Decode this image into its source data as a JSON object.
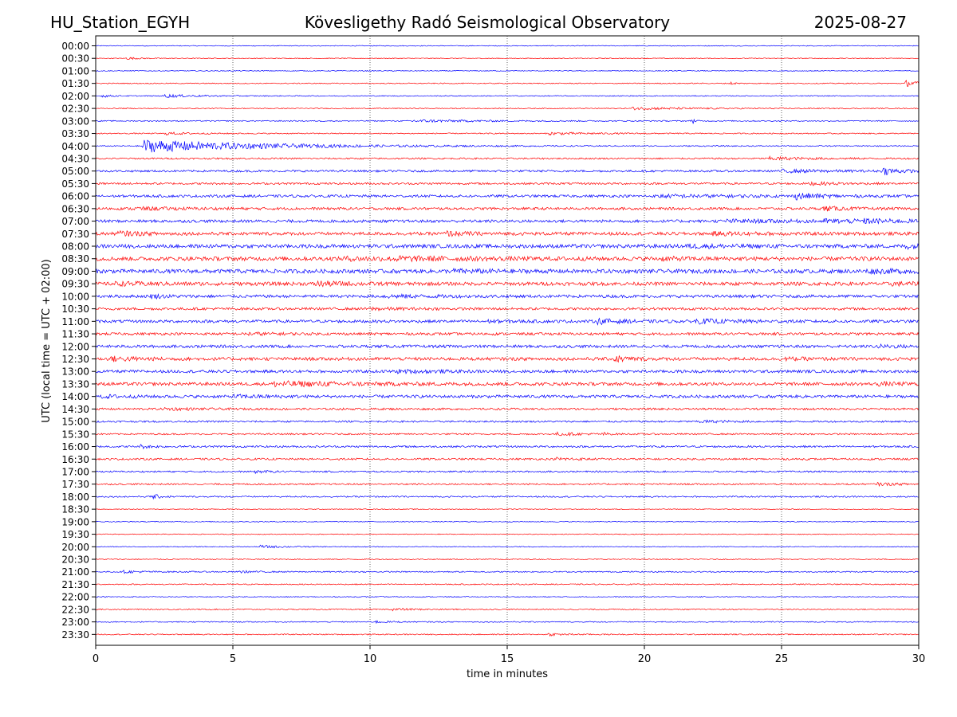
{
  "header": {
    "left": "HU_Station_EGYH",
    "center": "Kövesligethy Radó Seismological Observatory",
    "right": "2025-08-27"
  },
  "colors": {
    "even_rows": "#0000ff",
    "odd_rows": "#ff0000",
    "grid": "#000000",
    "axes": "#000000"
  },
  "chart_data": {
    "type": "line",
    "title": "Kövesligethy Radó Seismological Observatory",
    "xlabel": "time in minutes",
    "ylabel": "UTC (local time = UTC + 02:00)",
    "xlim": [
      0,
      30
    ],
    "x_ticks": [
      0,
      5,
      10,
      15,
      20,
      25,
      30
    ],
    "vertical_grid": "dotted at each x tick",
    "rows": [
      {
        "label": "00:00",
        "color": "blue",
        "noise": 0.5,
        "events": []
      },
      {
        "label": "00:30",
        "color": "red",
        "noise": 0.5,
        "events": [
          [
            1.1,
            1.6,
            0.4
          ]
        ]
      },
      {
        "label": "01:00",
        "color": "blue",
        "noise": 0.5,
        "events": []
      },
      {
        "label": "01:30",
        "color": "red",
        "noise": 0.6,
        "events": [
          [
            23.1,
            2,
            0.2
          ],
          [
            29.5,
            4,
            0.5
          ]
        ]
      },
      {
        "label": "02:00",
        "color": "blue",
        "noise": 0.6,
        "events": [
          [
            0.2,
            2,
            0.3
          ],
          [
            2.5,
            2,
            1.0
          ]
        ]
      },
      {
        "label": "02:30",
        "color": "red",
        "noise": 0.6,
        "events": [
          [
            19.5,
            1.5,
            2.5
          ]
        ]
      },
      {
        "label": "03:00",
        "color": "blue",
        "noise": 0.7,
        "events": [
          [
            11.5,
            1.5,
            2.5
          ],
          [
            21.7,
            6,
            0.1
          ]
        ]
      },
      {
        "label": "03:30",
        "color": "red",
        "noise": 0.7,
        "events": [
          [
            2.5,
            1.5,
            1.0
          ],
          [
            16.5,
            1.5,
            1.5
          ]
        ]
      },
      {
        "label": "04:00",
        "color": "blue",
        "noise": 0.7,
        "events": [
          [
            1.7,
            8,
            4.0
          ]
        ]
      },
      {
        "label": "04:30",
        "color": "red",
        "noise": 1.0,
        "events": [
          [
            24.5,
            1.8,
            1.5
          ]
        ]
      },
      {
        "label": "05:00",
        "color": "blue",
        "noise": 1.3,
        "events": [
          [
            28.7,
            4,
            0.6
          ],
          [
            25,
            1.5,
            2.0
          ]
        ]
      },
      {
        "label": "05:30",
        "color": "red",
        "noise": 1.3,
        "events": [
          [
            26,
            1.5,
            1.0
          ]
        ]
      },
      {
        "label": "06:00",
        "color": "blue",
        "noise": 1.6,
        "events": [
          [
            25.5,
            3.5,
            0.8
          ],
          [
            20.5,
            1.3,
            3.0
          ]
        ]
      },
      {
        "label": "06:30",
        "color": "red",
        "noise": 1.6,
        "events": [
          [
            26.5,
            2.5,
            0.8
          ],
          [
            1.3,
            1.3,
            2.0
          ]
        ]
      },
      {
        "label": "07:00",
        "color": "blue",
        "noise": 1.8,
        "events": [
          [
            23,
            1.3,
            3.0
          ],
          [
            26.5,
            1.5,
            2.0
          ],
          [
            28,
            1.3,
            1.5
          ]
        ]
      },
      {
        "label": "07:30",
        "color": "red",
        "noise": 2.0,
        "events": [
          [
            0.8,
            2.5,
            0.8
          ],
          [
            12.7,
            2.5,
            0.8
          ],
          [
            22.5,
            1.3,
            2.0
          ]
        ]
      },
      {
        "label": "08:00",
        "color": "blue",
        "noise": 2.3,
        "events": [
          [
            29.5,
            2.3,
            0.5
          ],
          [
            21.5,
            1.3,
            2.0
          ]
        ]
      },
      {
        "label": "08:30",
        "color": "red",
        "noise": 2.5,
        "events": [
          [
            9,
            1.3,
            2.5
          ],
          [
            10.8,
            1.3,
            2.5
          ],
          [
            20.5,
            1.3,
            0.8
          ]
        ]
      },
      {
        "label": "09:00",
        "color": "blue",
        "noise": 2.5,
        "events": [
          [
            28,
            1.3,
            2.5
          ],
          [
            13,
            1.3,
            1.5
          ]
        ]
      },
      {
        "label": "09:30",
        "color": "red",
        "noise": 2.2,
        "events": [
          [
            8,
            2.5,
            1.0
          ],
          [
            0.6,
            1.3,
            2.0
          ],
          [
            29,
            1.3,
            1.0
          ]
        ]
      },
      {
        "label": "10:00",
        "color": "blue",
        "noise": 1.8,
        "events": [
          [
            2,
            2,
            0.6
          ],
          [
            10.5,
            1.3,
            2.0
          ]
        ]
      },
      {
        "label": "10:30",
        "color": "red",
        "noise": 1.6,
        "events": [
          [
            10,
            1.3,
            1.0
          ]
        ]
      },
      {
        "label": "11:00",
        "color": "blue",
        "noise": 1.8,
        "events": [
          [
            18.3,
            2.8,
            0.8
          ],
          [
            21.8,
            2.2,
            1.5
          ],
          [
            14,
            1.3,
            1.0
          ]
        ]
      },
      {
        "label": "11:30",
        "color": "red",
        "noise": 1.6,
        "events": [
          [
            5.5,
            1.3,
            1.0
          ]
        ]
      },
      {
        "label": "12:00",
        "color": "blue",
        "noise": 1.8,
        "events": [
          [
            28.5,
            1.3,
            1.0
          ]
        ]
      },
      {
        "label": "12:30",
        "color": "red",
        "noise": 2.0,
        "events": [
          [
            18.8,
            4.5,
            0.5
          ],
          [
            0.5,
            2.5,
            1.0
          ],
          [
            25,
            1.3,
            0.8
          ]
        ]
      },
      {
        "label": "13:00",
        "color": "blue",
        "noise": 1.8,
        "events": [
          [
            11,
            1.3,
            1.5
          ]
        ]
      },
      {
        "label": "13:30",
        "color": "red",
        "noise": 2.0,
        "events": [
          [
            6.5,
            2.5,
            3.0
          ],
          [
            28.5,
            1.3,
            1.0
          ]
        ]
      },
      {
        "label": "14:00",
        "color": "blue",
        "noise": 1.8,
        "events": [
          [
            5,
            1.3,
            1.5
          ],
          [
            0.2,
            1.3,
            1.0
          ]
        ]
      },
      {
        "label": "14:30",
        "color": "red",
        "noise": 1.3,
        "events": [
          [
            2.5,
            1.3,
            1.0
          ]
        ]
      },
      {
        "label": "15:00",
        "color": "blue",
        "noise": 1.1,
        "events": [
          [
            22,
            1.3,
            1.0
          ]
        ]
      },
      {
        "label": "15:30",
        "color": "red",
        "noise": 1.0,
        "events": [
          [
            16.8,
            1.8,
            0.8
          ],
          [
            18.5,
            1.5,
            0.2
          ]
        ]
      },
      {
        "label": "16:00",
        "color": "blue",
        "noise": 1.2,
        "events": [
          [
            1.6,
            2.2,
            0.4
          ]
        ]
      },
      {
        "label": "16:30",
        "color": "red",
        "noise": 1.2,
        "events": [
          [
            16.8,
            1.5,
            0.8
          ]
        ]
      },
      {
        "label": "17:00",
        "color": "blue",
        "noise": 1.0,
        "events": [
          [
            5.8,
            1.5,
            0.5
          ]
        ]
      },
      {
        "label": "17:30",
        "color": "red",
        "noise": 1.0,
        "events": [
          [
            28.5,
            1.3,
            1.0
          ]
        ]
      },
      {
        "label": "18:00",
        "color": "blue",
        "noise": 0.9,
        "events": [
          [
            2,
            3.5,
            0.3
          ]
        ]
      },
      {
        "label": "18:30",
        "color": "red",
        "noise": 0.5,
        "events": []
      },
      {
        "label": "19:00",
        "color": "blue",
        "noise": 0.5,
        "events": []
      },
      {
        "label": "19:30",
        "color": "red",
        "noise": 0.5,
        "events": []
      },
      {
        "label": "20:00",
        "color": "blue",
        "noise": 0.5,
        "events": [
          [
            6,
            1.8,
            0.8
          ]
        ]
      },
      {
        "label": "20:30",
        "color": "red",
        "noise": 0.6,
        "events": []
      },
      {
        "label": "21:00",
        "color": "blue",
        "noise": 0.8,
        "events": [
          [
            1,
            1.3,
            0.8
          ],
          [
            5.2,
            1.3,
            0.5
          ]
        ]
      },
      {
        "label": "21:30",
        "color": "red",
        "noise": 0.7,
        "events": []
      },
      {
        "label": "22:00",
        "color": "blue",
        "noise": 0.6,
        "events": []
      },
      {
        "label": "22:30",
        "color": "red",
        "noise": 0.7,
        "events": [
          [
            10.8,
            1.3,
            0.8
          ]
        ]
      },
      {
        "label": "23:00",
        "color": "blue",
        "noise": 0.7,
        "events": [
          [
            10.2,
            1.3,
            0.5
          ]
        ]
      },
      {
        "label": "23:30",
        "color": "red",
        "noise": 0.7,
        "events": [
          [
            16.5,
            1.5,
            0.6
          ]
        ]
      }
    ]
  }
}
